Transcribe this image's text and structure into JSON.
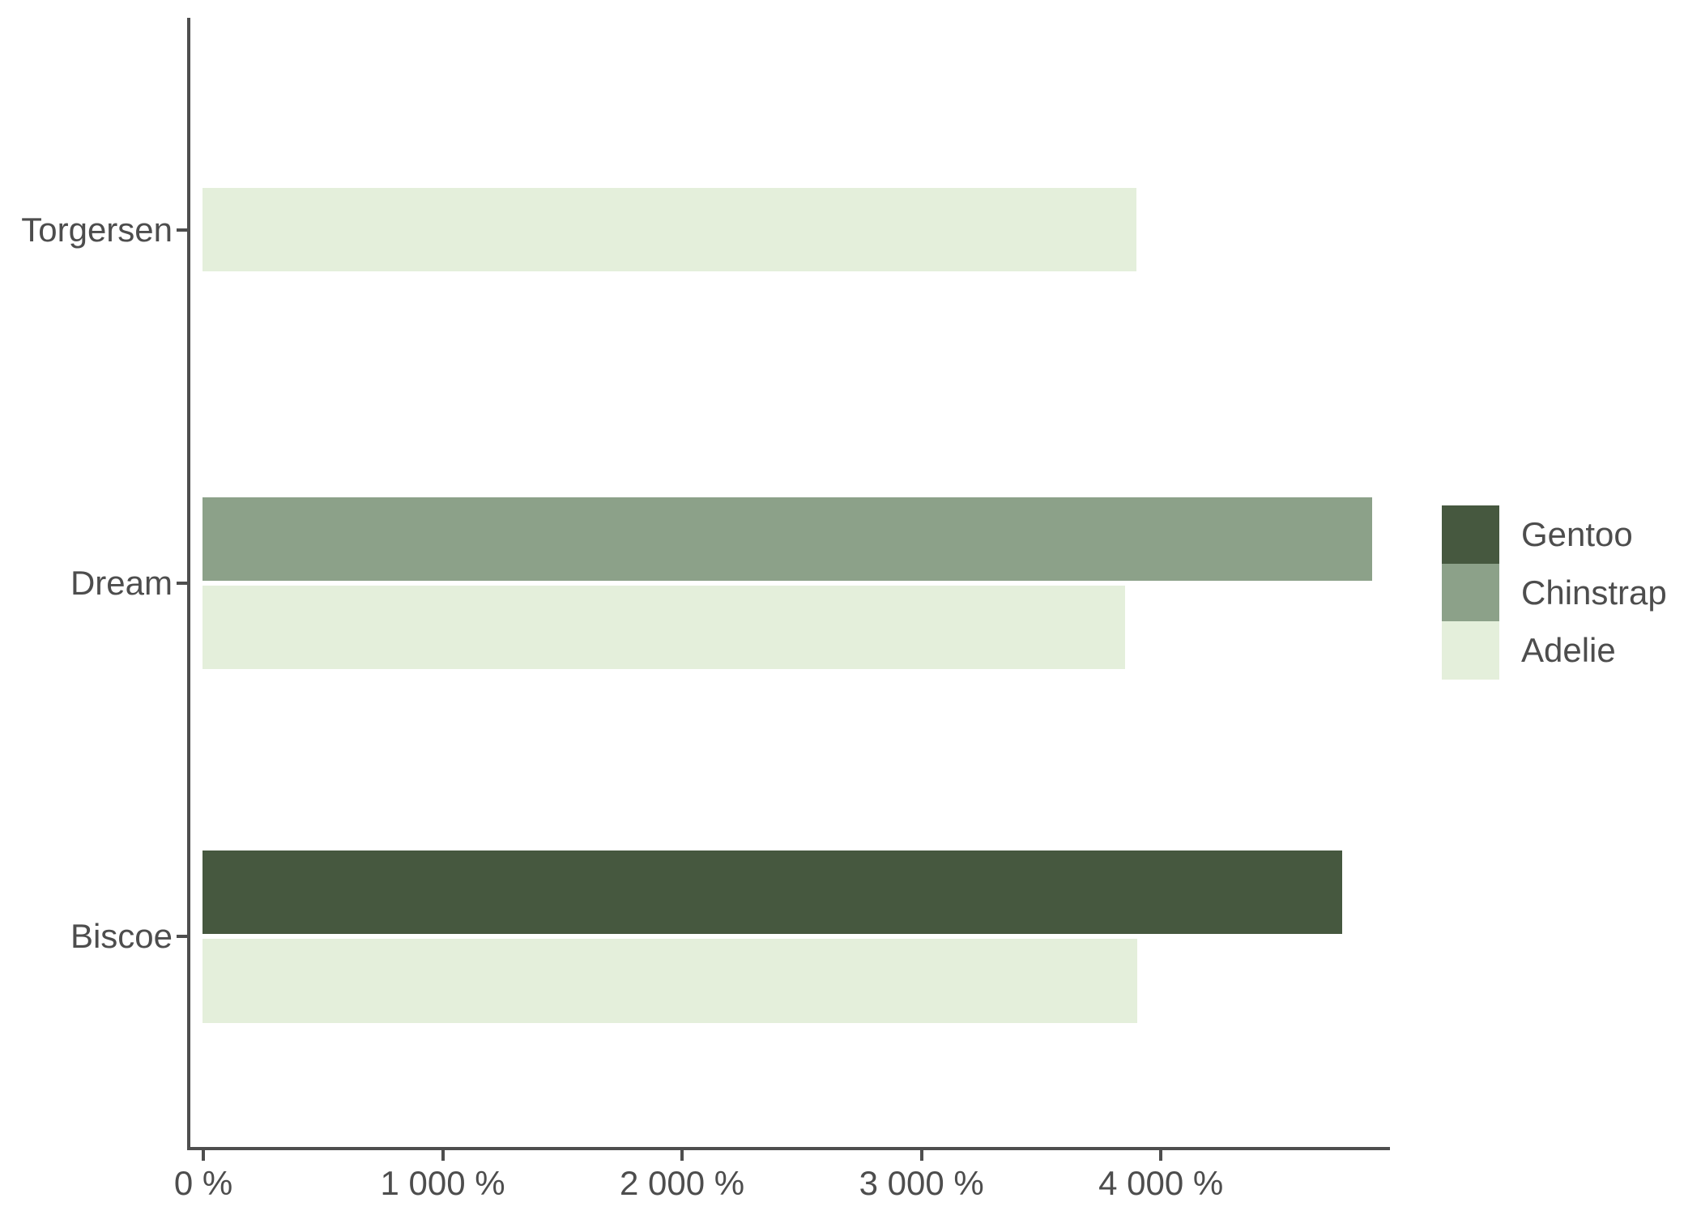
{
  "chart_data": {
    "type": "bar",
    "orientation": "horizontal",
    "title": "",
    "xlabel": "",
    "ylabel": "",
    "unit": "percent",
    "xlim": [
      0,
      4960
    ],
    "grid": false,
    "x_ticks": [
      {
        "value": 0,
        "label": "0 %"
      },
      {
        "value": 1000,
        "label": "1 000 %"
      },
      {
        "value": 2000,
        "label": "2 000 %"
      },
      {
        "value": 3000,
        "label": "3 000 %"
      },
      {
        "value": 4000,
        "label": "4 000 %"
      }
    ],
    "categories": [
      "Torgersen",
      "Dream",
      "Biscoe"
    ],
    "rows": [
      {
        "island": "Torgersen",
        "bars": [
          {
            "species": "Adelie",
            "value_pct": 3900
          }
        ]
      },
      {
        "island": "Dream",
        "bars": [
          {
            "species": "Chinstrap",
            "value_pct": 4885
          },
          {
            "species": "Adelie",
            "value_pct": 3855
          }
        ]
      },
      {
        "island": "Biscoe",
        "bars": [
          {
            "species": "Gentoo",
            "value_pct": 4760
          },
          {
            "species": "Adelie",
            "value_pct": 3905
          }
        ]
      }
    ],
    "series_colors": {
      "Gentoo": "#46583f",
      "Chinstrap": "#8ca189",
      "Adelie": "#e4efdb"
    },
    "legend_position": "right",
    "axis_color": "#4e4e4e",
    "text_color": "#4d4d4d"
  },
  "legend": {
    "items": [
      {
        "label": "Gentoo",
        "color": "#46583f"
      },
      {
        "label": "Chinstrap",
        "color": "#8ca189"
      },
      {
        "label": "Adelie",
        "color": "#e4efdb"
      }
    ]
  }
}
